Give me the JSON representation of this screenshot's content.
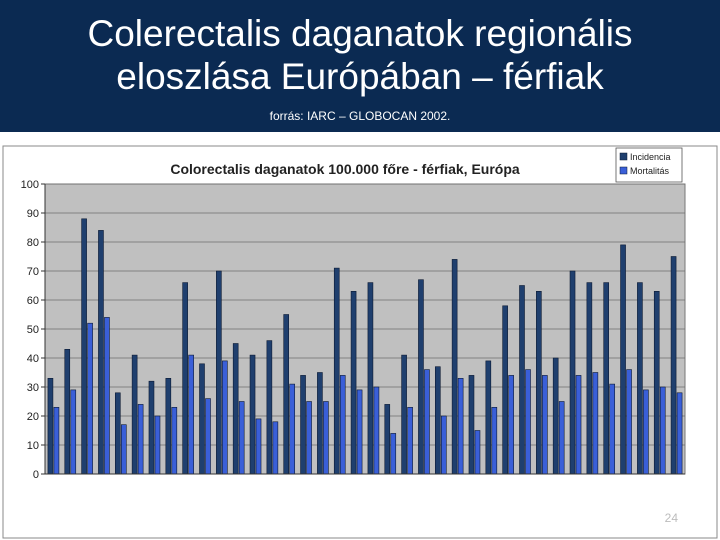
{
  "slide": {
    "title_line1": "Colerectalis daganatok regionális",
    "title_line2": "eloszlása Európában – férfiak",
    "source": "forrás: IARC – GLOBOCAN 2002.",
    "page_number": "24"
  },
  "colors": {
    "header_bg": "#0b2a52",
    "plot_bg": "#c0c0c0",
    "incidence": "#1f3f6e",
    "mortality": "#3a5fd8"
  },
  "chart_data": {
    "type": "bar",
    "title": "Colorectalis daganatok 100.000 főre - férfiak, Európa",
    "legend": [
      "Incidencia",
      "Mortalitás"
    ],
    "legend_position": "top-right",
    "ylim": [
      0,
      100
    ],
    "yticks": [
      0,
      10,
      20,
      30,
      40,
      50,
      60,
      70,
      80,
      90,
      100
    ],
    "grid": true,
    "categories": [
      "",
      "",
      "",
      "",
      "",
      "",
      "",
      "",
      "",
      "",
      "",
      "",
      "",
      "",
      "",
      "",
      "",
      "",
      "",
      "",
      "",
      "",
      "",
      "",
      "",
      "",
      "",
      "",
      "",
      "",
      "",
      "",
      "",
      "",
      "",
      "",
      "",
      ""
    ],
    "series": [
      {
        "name": "Incidencia",
        "values": [
          33,
          43,
          88,
          84,
          28,
          41,
          32,
          33,
          66,
          38,
          70,
          45,
          41,
          46,
          55,
          34,
          35,
          71,
          63,
          66,
          24,
          41,
          67,
          37,
          74,
          34,
          39,
          58,
          65,
          63,
          40,
          70,
          66,
          66,
          79,
          66,
          63,
          75
        ]
      },
      {
        "name": "Mortalitás",
        "values": [
          23,
          29,
          52,
          54,
          17,
          24,
          20,
          23,
          41,
          26,
          39,
          25,
          19,
          18,
          31,
          25,
          25,
          34,
          29,
          30,
          14,
          23,
          36,
          20,
          33,
          15,
          23,
          34,
          36,
          34,
          25,
          34,
          35,
          31,
          36,
          29,
          30,
          28
        ]
      }
    ]
  }
}
